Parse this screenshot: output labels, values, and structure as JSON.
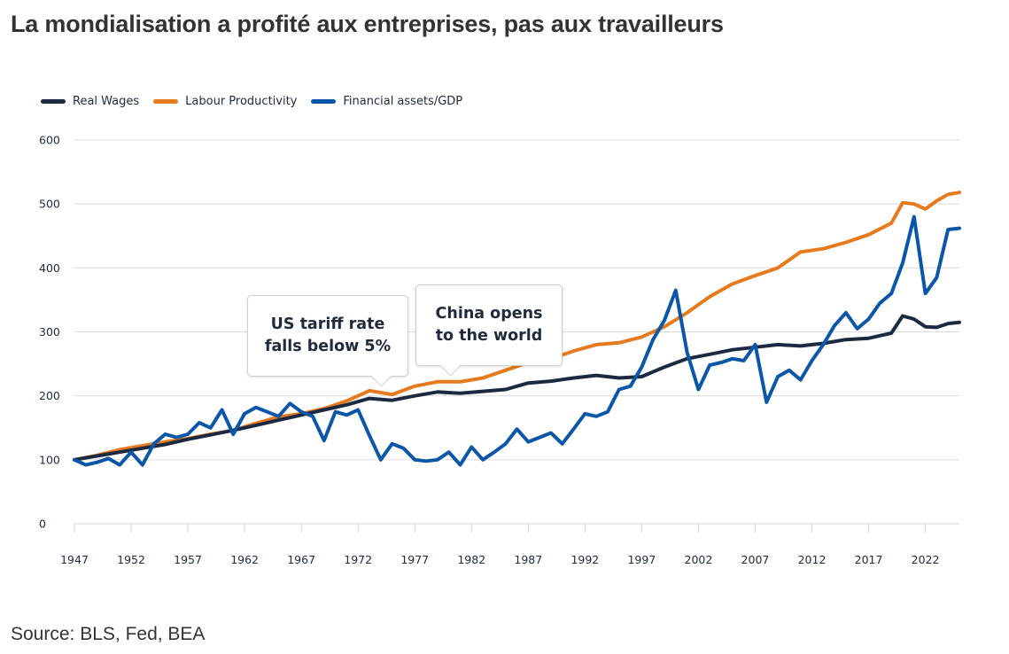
{
  "title": "La mondialisation a profité aux entreprises, pas aux travailleurs",
  "source": "Source: BLS, Fed, BEA",
  "annotations": [
    {
      "text_line1": "US tariff rate",
      "text_line2": "falls below 5%",
      "x": 1974
    },
    {
      "text_line1": "China opens",
      "text_line2": "to the world",
      "x": 1979
    }
  ],
  "chart_data": {
    "type": "line",
    "title": "La mondialisation a profité aux entreprises, pas aux travailleurs",
    "xlabel": "",
    "ylabel": "",
    "xlim": [
      1947,
      2025
    ],
    "ylim": [
      0,
      600
    ],
    "yticks": [
      0,
      100,
      200,
      300,
      400,
      500,
      600
    ],
    "xticks": [
      1947,
      1952,
      1957,
      1962,
      1967,
      1972,
      1977,
      1982,
      1987,
      1992,
      1997,
      2002,
      2007,
      2012,
      2017,
      2022
    ],
    "grid": true,
    "legend_position": "top-left",
    "series": [
      {
        "name": "Real Wages",
        "color": "#1b2a41",
        "x": [
          1947,
          1949,
          1951,
          1953,
          1955,
          1957,
          1959,
          1961,
          1963,
          1965,
          1967,
          1969,
          1971,
          1973,
          1975,
          1977,
          1979,
          1981,
          1983,
          1985,
          1987,
          1989,
          1991,
          1993,
          1995,
          1997,
          1999,
          2001,
          2003,
          2005,
          2007,
          2009,
          2011,
          2013,
          2015,
          2017,
          2019,
          2020,
          2021,
          2022,
          2023,
          2024,
          2025
        ],
        "y": [
          100,
          106,
          112,
          118,
          124,
          132,
          139,
          146,
          154,
          162,
          170,
          178,
          186,
          196,
          193,
          200,
          206,
          204,
          207,
          210,
          220,
          223,
          228,
          232,
          228,
          230,
          245,
          258,
          265,
          272,
          276,
          280,
          278,
          282,
          288,
          290,
          298,
          325,
          320,
          308,
          307,
          313,
          315
        ]
      },
      {
        "name": "Labour Productivity",
        "color": "#e57a1e",
        "x": [
          1947,
          1949,
          1951,
          1953,
          1955,
          1957,
          1959,
          1961,
          1963,
          1965,
          1967,
          1969,
          1971,
          1973,
          1975,
          1977,
          1979,
          1981,
          1983,
          1985,
          1987,
          1989,
          1991,
          1993,
          1995,
          1997,
          1999,
          2001,
          2003,
          2005,
          2007,
          2009,
          2011,
          2013,
          2015,
          2017,
          2019,
          2020,
          2021,
          2022,
          2023,
          2024,
          2025
        ],
        "y": [
          100,
          107,
          116,
          122,
          128,
          133,
          140,
          146,
          157,
          167,
          172,
          180,
          192,
          208,
          202,
          215,
          222,
          222,
          228,
          240,
          252,
          258,
          270,
          280,
          283,
          292,
          308,
          330,
          355,
          375,
          388,
          400,
          425,
          430,
          440,
          452,
          470,
          502,
          500,
          492,
          505,
          515,
          518
        ]
      },
      {
        "name": "Financial assets/GDP",
        "color": "#0b56a6",
        "x": [
          1947,
          1948,
          1949,
          1950,
          1951,
          1952,
          1953,
          1954,
          1955,
          1956,
          1957,
          1958,
          1959,
          1960,
          1961,
          1962,
          1963,
          1964,
          1965,
          1966,
          1967,
          1968,
          1969,
          1970,
          1971,
          1972,
          1973,
          1974,
          1975,
          1976,
          1977,
          1978,
          1979,
          1980,
          1981,
          1982,
          1983,
          1984,
          1985,
          1986,
          1987,
          1988,
          1989,
          1990,
          1991,
          1992,
          1993,
          1994,
          1995,
          1996,
          1997,
          1998,
          1999,
          2000,
          2001,
          2002,
          2003,
          2004,
          2005,
          2006,
          2007,
          2008,
          2009,
          2010,
          2011,
          2012,
          2013,
          2014,
          2015,
          2016,
          2017,
          2018,
          2019,
          2020,
          2021,
          2022,
          2023,
          2024,
          2025
        ],
        "y": [
          100,
          92,
          96,
          102,
          92,
          112,
          92,
          125,
          140,
          135,
          140,
          158,
          150,
          178,
          140,
          172,
          182,
          175,
          168,
          188,
          175,
          168,
          130,
          175,
          170,
          178,
          138,
          100,
          125,
          118,
          100,
          98,
          100,
          112,
          92,
          120,
          100,
          112,
          125,
          148,
          128,
          135,
          142,
          125,
          148,
          172,
          168,
          175,
          210,
          215,
          245,
          288,
          318,
          365,
          268,
          210,
          248,
          252,
          258,
          255,
          280,
          190,
          230,
          240,
          225,
          255,
          280,
          310,
          330,
          305,
          320,
          345,
          360,
          408,
          480,
          360,
          385,
          460,
          462
        ]
      }
    ]
  }
}
